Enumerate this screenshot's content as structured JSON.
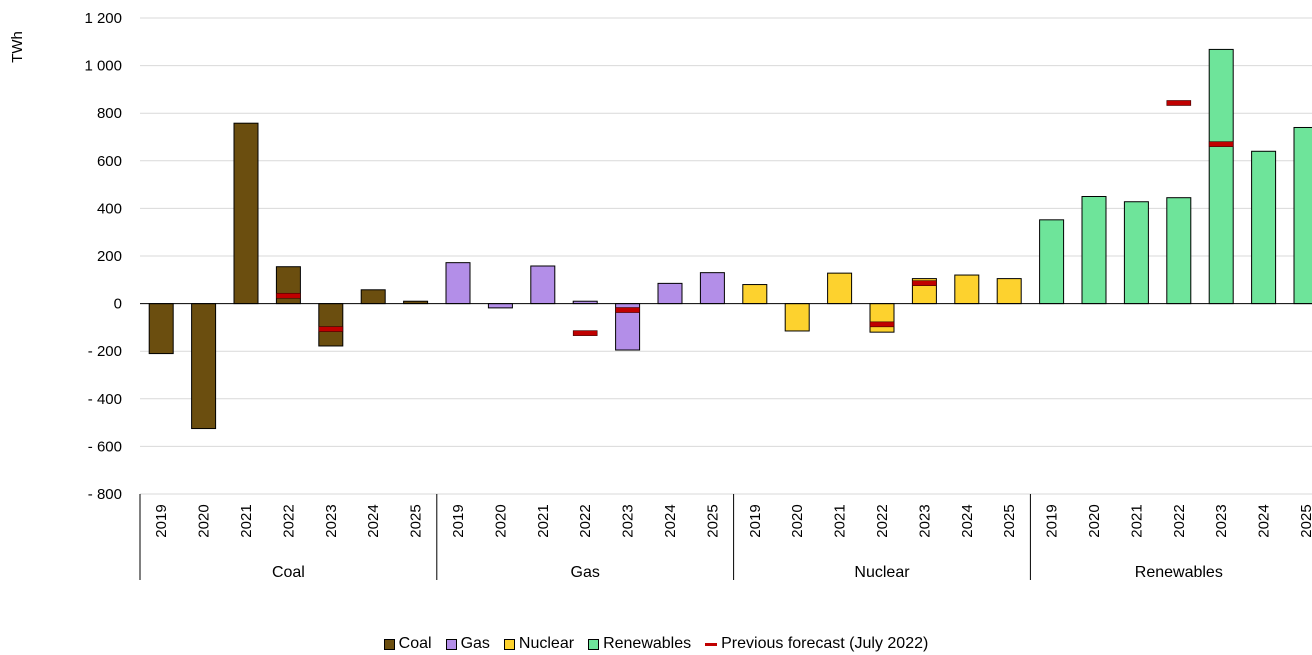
{
  "chart_data": {
    "type": "bar",
    "ylabel": "TWh",
    "ylim": [
      -800,
      1200
    ],
    "yticks": [
      1200,
      1000,
      800,
      600,
      400,
      200,
      0,
      -200,
      -400,
      -600,
      -800
    ],
    "ytick_labels": [
      "1 200",
      "1 000",
      "800",
      "600",
      "400",
      "200",
      "0",
      "- 200",
      "- 400",
      "- 600",
      "- 800"
    ],
    "grid": true,
    "legend_position": "bottom",
    "categories": [
      "2019",
      "2020",
      "2021",
      "2022",
      "2023",
      "2024",
      "2025"
    ],
    "groups": [
      "Coal",
      "Gas",
      "Nuclear",
      "Renewables"
    ],
    "series": [
      {
        "name": "Coal",
        "color": "#6b4e0f",
        "values": [
          -210,
          -525,
          758,
          155,
          -178,
          58,
          10
        ]
      },
      {
        "name": "Gas",
        "color": "#b38ee8",
        "values": [
          172,
          -18,
          158,
          10,
          -195,
          85,
          130
        ]
      },
      {
        "name": "Nuclear",
        "color": "#fdd22e",
        "values": [
          80,
          -115,
          128,
          -120,
          105,
          120,
          105
        ]
      },
      {
        "name": "Renewables",
        "color": "#6ee49a",
        "values": [
          352,
          450,
          428,
          445,
          1068,
          640,
          740
        ]
      }
    ],
    "forecast": {
      "name": "Previous forecast (July 2022)",
      "color": "#c00000",
      "points": [
        {
          "group": "Coal",
          "category": "2022",
          "value": 35
        },
        {
          "group": "Coal",
          "category": "2023",
          "value": -105
        },
        {
          "group": "Gas",
          "category": "2022",
          "value": -122
        },
        {
          "group": "Gas",
          "category": "2023",
          "value": -25
        },
        {
          "group": "Nuclear",
          "category": "2022",
          "value": -85
        },
        {
          "group": "Nuclear",
          "category": "2023",
          "value": 88
        },
        {
          "group": "Renewables",
          "category": "2022",
          "value": 845
        },
        {
          "group": "Renewables",
          "category": "2023",
          "value": 672
        }
      ]
    }
  }
}
